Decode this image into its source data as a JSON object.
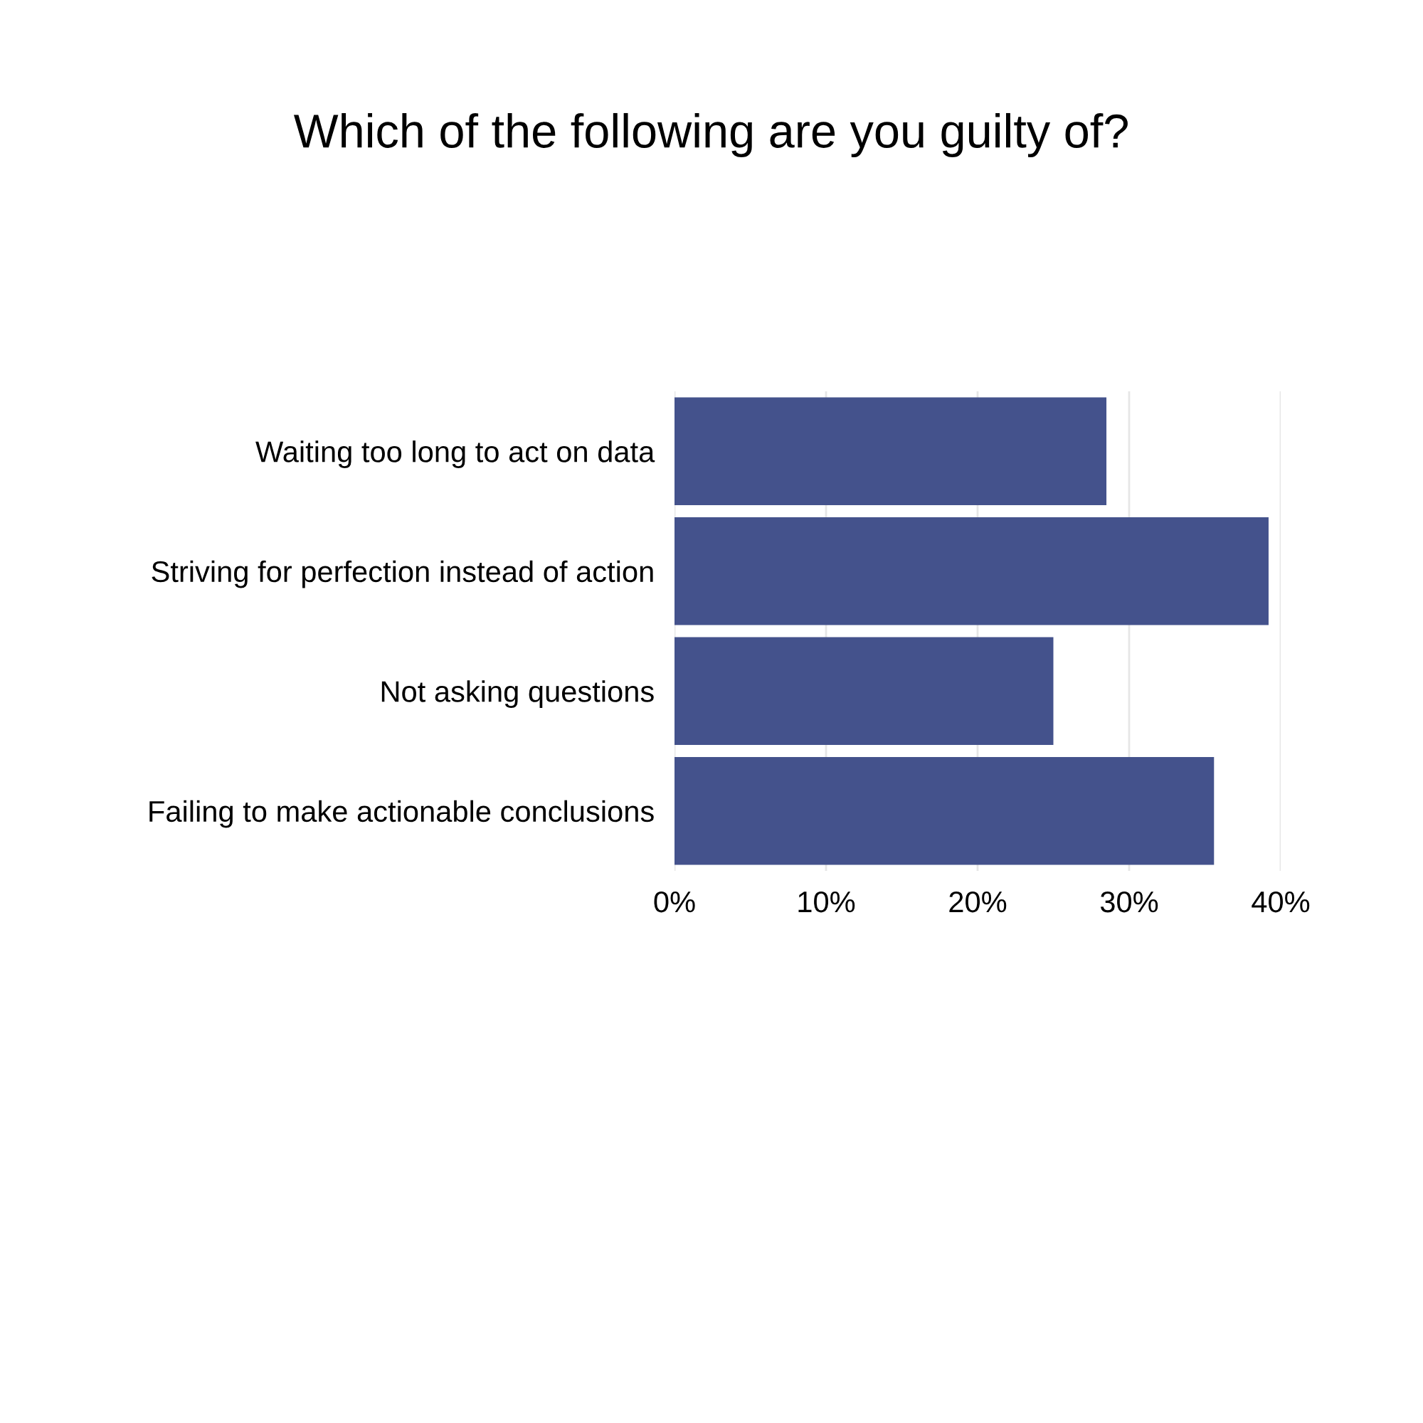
{
  "chart_data": {
    "type": "bar",
    "orientation": "horizontal",
    "title": "Which of the following are you guilty of?",
    "categories": [
      "Waiting too long to act on data",
      "Striving for perfection instead of action",
      "Not asking questions",
      "Failing to make actionable conclusions"
    ],
    "values": [
      28.5,
      39.2,
      25.0,
      35.6
    ],
    "color": "#44528c",
    "xlim": [
      0,
      40
    ],
    "xticks": [
      {
        "value": 0,
        "label": "0%"
      },
      {
        "value": 10,
        "label": "10%"
      },
      {
        "value": 20,
        "label": "20%"
      },
      {
        "value": 30,
        "label": "30%"
      },
      {
        "value": 40,
        "label": "40%"
      }
    ],
    "grid": "x",
    "legend": false
  }
}
